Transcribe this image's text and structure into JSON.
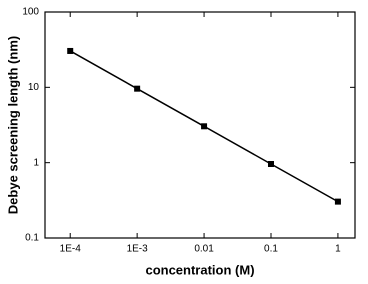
{
  "chart_data": {
    "type": "line",
    "x_label": "concentration (M)",
    "y_label": "Debye screening length (nm)",
    "x": [
      0.0001,
      0.001,
      0.01,
      0.1,
      1
    ],
    "series": [
      {
        "color": "#000000",
        "values": [
          30.4,
          9.6,
          3.04,
          0.96,
          0.304
        ]
      }
    ],
    "xlim": [
      4.2e-05,
      1.8
    ],
    "ylim": [
      0.1,
      100
    ],
    "xticks": [
      {
        "value": 0.0001,
        "label": "1E-4"
      },
      {
        "value": 0.001,
        "label": "1E-3"
      },
      0.01,
      0.1,
      1
    ],
    "yticks": [
      0.1,
      1,
      10,
      100
    ],
    "xscale": "log",
    "yscale": "log"
  }
}
